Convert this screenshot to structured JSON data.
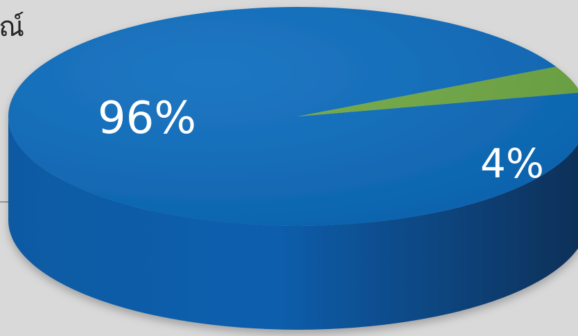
{
  "page": {
    "corner_text": "ณ์"
  },
  "chart_data": {
    "type": "pie",
    "title": "",
    "three_d": true,
    "slices": [
      {
        "label": "96%",
        "value": 96,
        "color": "#0b6bbd",
        "side_color": "#0a4f8f"
      },
      {
        "label": "4%",
        "value": 4,
        "color": "#6fa843",
        "side_color": "#3f6b24"
      }
    ]
  }
}
